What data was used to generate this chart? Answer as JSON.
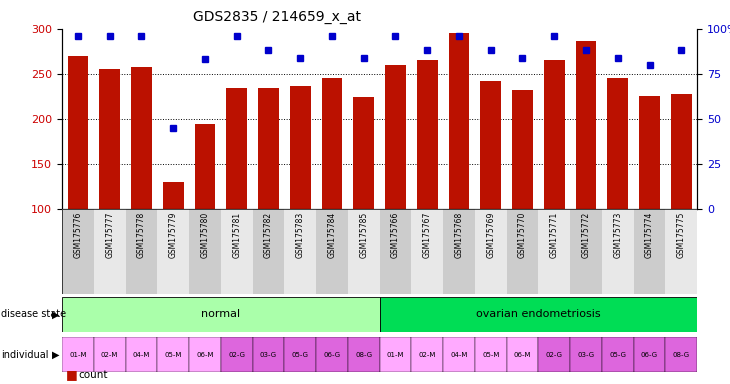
{
  "title": "GDS2835 / 214659_x_at",
  "samples": [
    "GSM175776",
    "GSM175777",
    "GSM175778",
    "GSM175779",
    "GSM175780",
    "GSM175781",
    "GSM175782",
    "GSM175783",
    "GSM175784",
    "GSM175785",
    "GSM175766",
    "GSM175767",
    "GSM175768",
    "GSM175769",
    "GSM175770",
    "GSM175771",
    "GSM175772",
    "GSM175773",
    "GSM175774",
    "GSM175775"
  ],
  "count_values": [
    270,
    255,
    258,
    130,
    195,
    234,
    234,
    237,
    246,
    224,
    260,
    265,
    295,
    242,
    232,
    265,
    287,
    245,
    226,
    228
  ],
  "percentile_values": [
    96,
    96,
    96,
    45,
    83,
    96,
    88,
    84,
    96,
    84,
    96,
    88,
    96,
    88,
    84,
    96,
    88,
    84,
    80,
    88
  ],
  "ymin": 100,
  "ymax": 300,
  "yticks": [
    100,
    150,
    200,
    250,
    300
  ],
  "right_yticks": [
    0,
    25,
    50,
    75,
    100
  ],
  "bar_color": "#bb1100",
  "dot_color": "#0000cc",
  "disease_states": [
    "normal",
    "ovarian endometriosis"
  ],
  "disease_state_ranges": [
    [
      0,
      10
    ],
    [
      10,
      20
    ]
  ],
  "disease_state_colors": [
    "#aaffaa",
    "#00dd55"
  ],
  "individual_labels": [
    "01-M",
    "02-M",
    "04-M",
    "05-M",
    "06-M",
    "02-G",
    "03-G",
    "05-G",
    "06-G",
    "08-G",
    "01-M",
    "02-M",
    "04-M",
    "05-M",
    "06-M",
    "02-G",
    "03-G",
    "05-G",
    "06-G",
    "08-G"
  ],
  "ind_m_color": "#ffaaff",
  "ind_g_color": "#dd66dd",
  "bg_color": "#ffffff",
  "left_label_color": "#cc0000",
  "right_label_color": "#0000cc",
  "tick_bg_even": "#cccccc",
  "tick_bg_odd": "#e8e8e8"
}
